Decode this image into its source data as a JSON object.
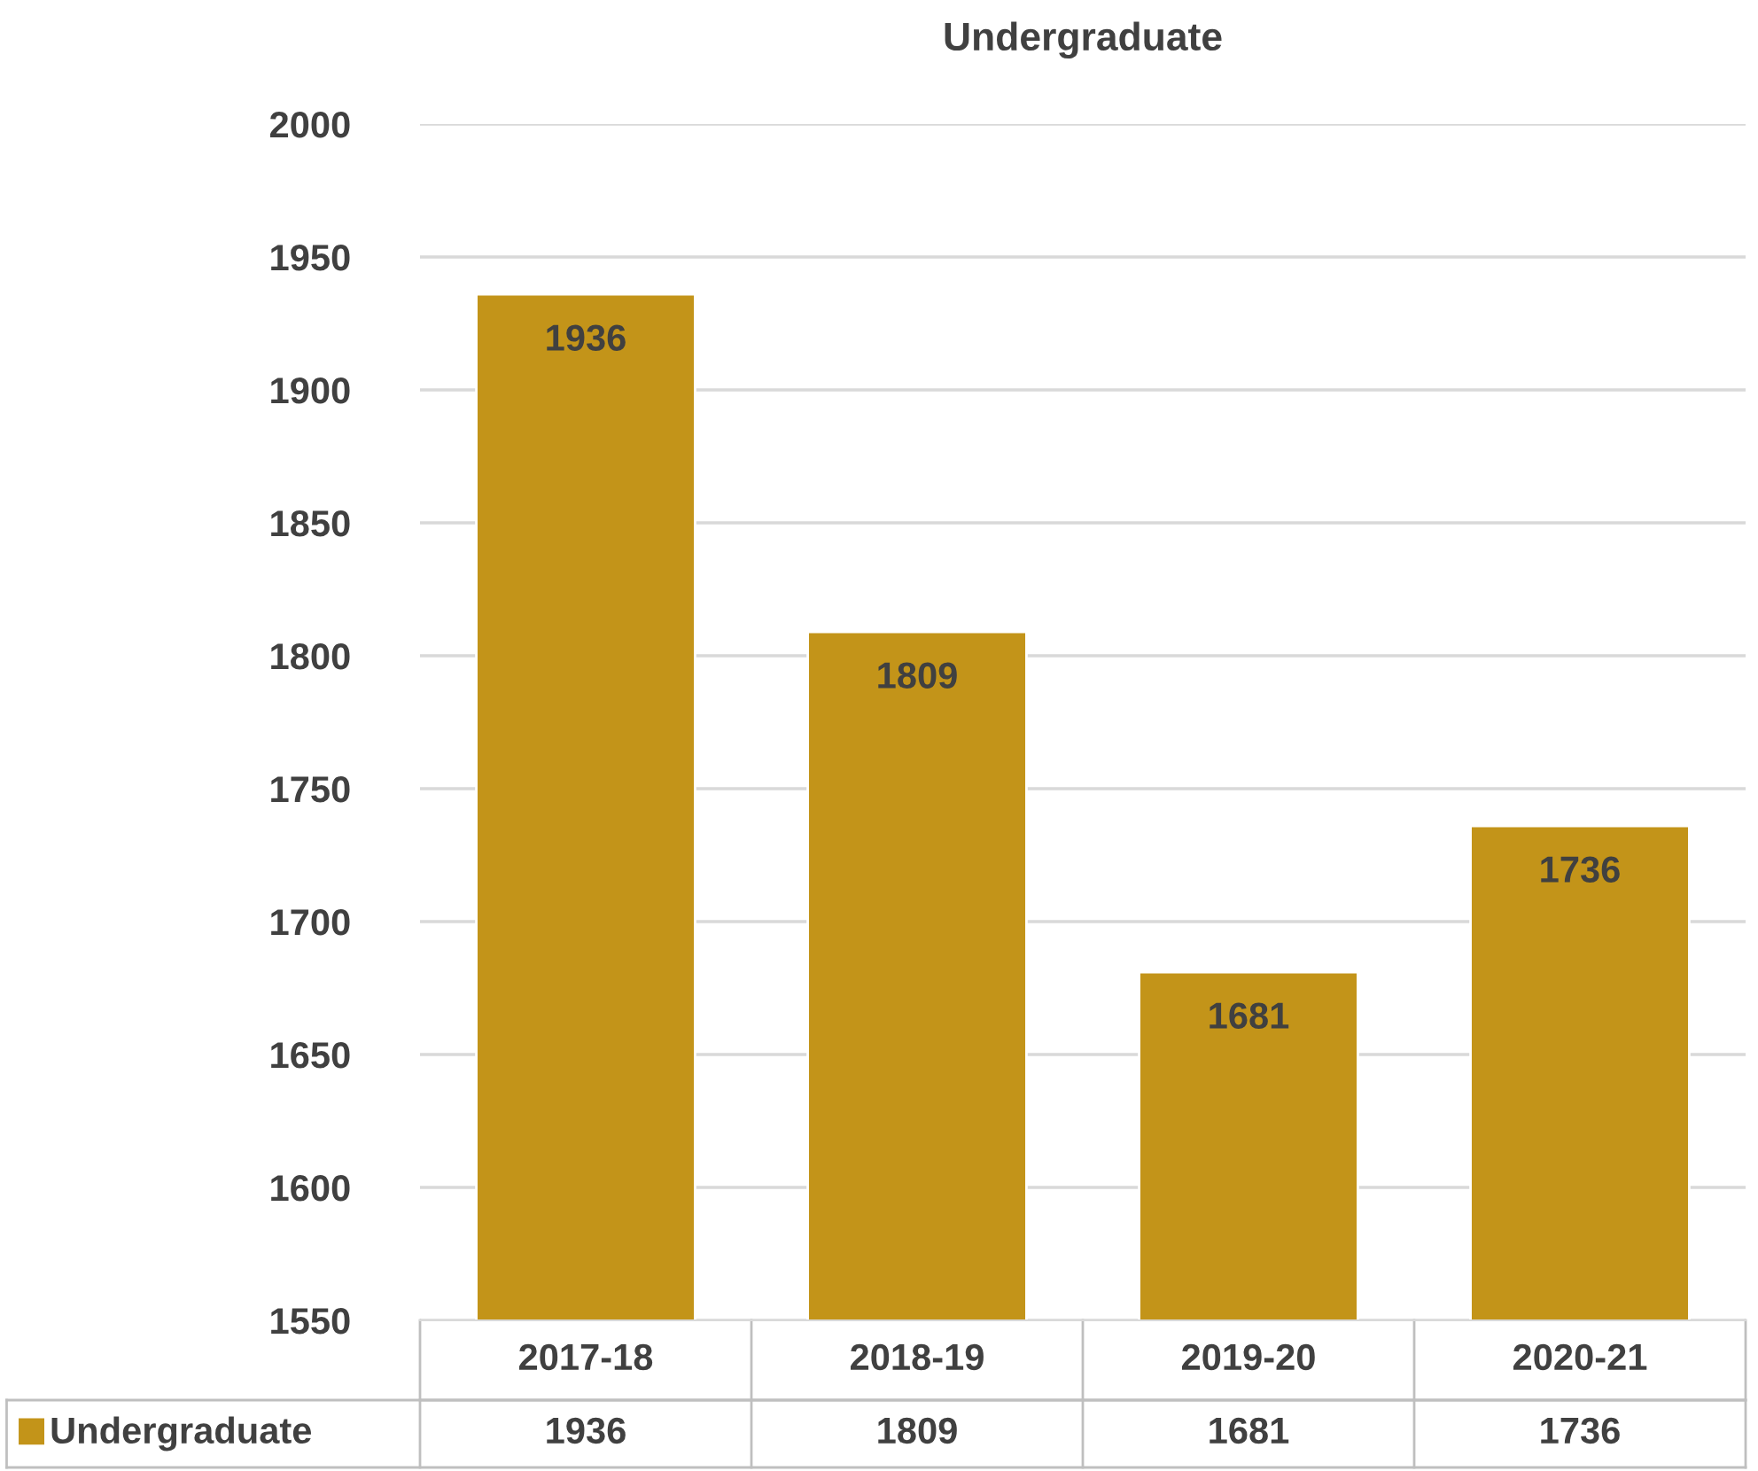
{
  "chart_data": {
    "type": "bar",
    "title": "Undergraduate",
    "categories": [
      "2017-18",
      "2018-19",
      "2019-20",
      "2020-21"
    ],
    "series": [
      {
        "name": "Undergraduate",
        "color": "#c39419",
        "values": [
          1936,
          1809,
          1681,
          1736
        ],
        "value_labels": [
          "1936",
          "1809",
          "1681",
          "1736"
        ]
      }
    ],
    "ylim": [
      1550,
      2000
    ],
    "yticks": [
      1550,
      1600,
      1650,
      1700,
      1750,
      1800,
      1850,
      1900,
      1950,
      2000
    ],
    "grid": "y",
    "legend": "bottom",
    "annotations": [
      "1936",
      "1809",
      "1681",
      "1736"
    ]
  }
}
